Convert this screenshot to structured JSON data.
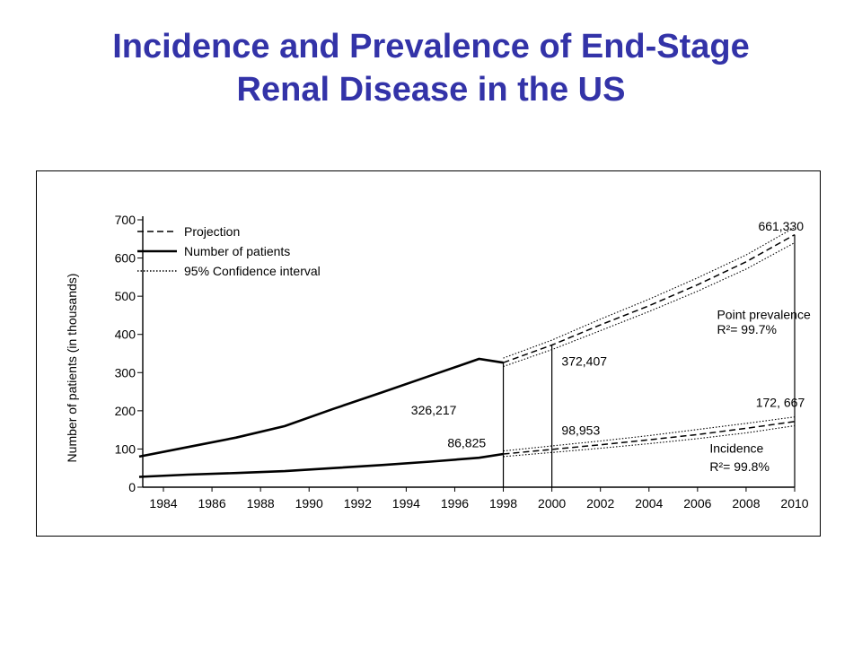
{
  "title": {
    "line1": "Incidence and Prevalence of End-Stage",
    "line2": "Renal Disease in the US"
  },
  "colors": {
    "title": "#3333a8",
    "ink": "#000000"
  },
  "chart_data": {
    "type": "line",
    "title": "Incidence and Prevalence of End-Stage Renal Disease in the US",
    "xlabel": "",
    "ylabel": "Number of patients (in thousands)",
    "xlim": [
      1983,
      2010
    ],
    "ylim": [
      0,
      700
    ],
    "xticks": [
      "1984",
      "1986",
      "1988",
      "1990",
      "1992",
      "1994",
      "1996",
      "1998",
      "2000",
      "2002",
      "2004",
      "2006",
      "2008",
      "2010"
    ],
    "yticks": [
      "0",
      "100",
      "200",
      "300",
      "400",
      "500",
      "600",
      "700"
    ],
    "grid": false,
    "legend_position": "top-left",
    "legend": [
      {
        "label": "Projection",
        "style": "dashed"
      },
      {
        "label": "Number of patients",
        "style": "solid"
      },
      {
        "label": "95% Confidence interval",
        "style": "dotted"
      }
    ],
    "series": [
      {
        "name": "Point prevalence",
        "observed": {
          "x": [
            1983,
            1985,
            1987,
            1989,
            1991,
            1993,
            1995,
            1997,
            1998
          ],
          "y": [
            80,
            105,
            130,
            160,
            205,
            248,
            292,
            336,
            326
          ]
        },
        "projection": {
          "x": [
            1998,
            2000,
            2002,
            2004,
            2006,
            2008,
            2010
          ],
          "y": [
            326,
            372,
            425,
            475,
            530,
            590,
            661
          ]
        },
        "ci_upper": {
          "x": [
            1998,
            2000,
            2002,
            2004,
            2006,
            2008,
            2010
          ],
          "y": [
            338,
            385,
            440,
            492,
            548,
            608,
            680
          ]
        },
        "ci_lower": {
          "x": [
            1998,
            2000,
            2002,
            2004,
            2006,
            2008,
            2010
          ],
          "y": [
            316,
            360,
            410,
            460,
            513,
            571,
            640
          ]
        }
      },
      {
        "name": "Incidence",
        "observed": {
          "x": [
            1983,
            1985,
            1987,
            1989,
            1991,
            1993,
            1995,
            1997,
            1998
          ],
          "y": [
            27,
            33,
            37,
            42,
            50,
            58,
            67,
            77,
            87
          ]
        },
        "projection": {
          "x": [
            1998,
            2000,
            2002,
            2004,
            2006,
            2008,
            2010
          ],
          "y": [
            87,
            99,
            111,
            124,
            138,
            154,
            172
          ]
        },
        "ci_upper": {
          "x": [
            1998,
            2000,
            2002,
            2004,
            2006,
            2008,
            2010
          ],
          "y": [
            95,
            108,
            121,
            135,
            151,
            167,
            184
          ]
        },
        "ci_lower": {
          "x": [
            1998,
            2000,
            2002,
            2004,
            2006,
            2008,
            2010
          ],
          "y": [
            80,
            91,
            102,
            114,
            127,
            142,
            161
          ]
        }
      }
    ],
    "vertical_markers": [
      1998,
      2000,
      2010
    ],
    "annotations": [
      {
        "text": "661,330",
        "x": 2008.5,
        "y": 672
      },
      {
        "text": "Point prevalence",
        "x": 2006.8,
        "y": 440
      },
      {
        "text": "R²= 99.7%",
        "x": 2006.8,
        "y": 402
      },
      {
        "text": "372,407",
        "x": 2000.4,
        "y": 318
      },
      {
        "text": "326,217",
        "x": 1994.2,
        "y": 190
      },
      {
        "text": "172, 667",
        "x": 2008.4,
        "y": 210
      },
      {
        "text": "98,953",
        "x": 2000.4,
        "y": 138
      },
      {
        "text": "86,825",
        "x": 1995.7,
        "y": 104
      },
      {
        "text": "Incidence",
        "x": 2006.5,
        "y": 90
      },
      {
        "text": "R²= 99.8%",
        "x": 2006.5,
        "y": 42
      }
    ]
  }
}
